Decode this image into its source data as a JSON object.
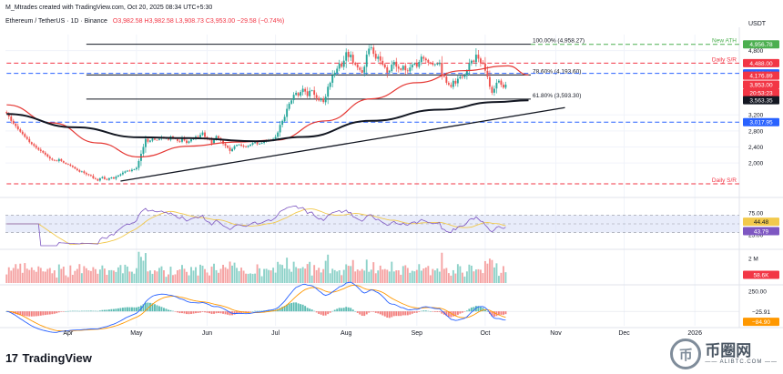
{
  "header": {
    "credit": "M_Mtrades created with TradingView.com, Oct 20, 2025 08:34 UTC+5:30",
    "symbol": "Ethereum / TetherUS · 1D · Binance",
    "ohlc": "O3,982.58 H3,982.58 L3,908.73 C3,953.00 −29.58 (−0.74%)"
  },
  "footer": {
    "logo_text": "TradingView",
    "logo_mark": "17"
  },
  "watermark": {
    "symbol": "币",
    "name": "币圈网",
    "domain": "—— ALIBTC.COM ——"
  },
  "colors": {
    "up": "#26a69a",
    "down": "#ef5350",
    "ma50": "#e53935",
    "ma200": "#131722",
    "rsi": "#7e57c2",
    "rsi_ma": "#f2c94c",
    "macd": "#2962ff",
    "signal": "#ff9800"
  },
  "chart_data": {
    "type": "candlestick",
    "symbol": "Ethereum / TetherUS",
    "interval": "1D",
    "exchange": "Binance",
    "currency": "USDT",
    "price_axis": {
      "range": [
        1300,
        5200
      ],
      "ticks": [
        2000,
        2400,
        2800,
        3200,
        4800
      ],
      "tick_labels": [
        "2,000",
        "2,400",
        "2,800",
        "3,200",
        "4,800"
      ]
    },
    "time_axis": {
      "labels": [
        "Apr",
        "May",
        "Jun",
        "Jul",
        "Aug",
        "Sep",
        "Oct",
        "Nov",
        "Dec",
        "2026"
      ],
      "label_bars": [
        27,
        57,
        88,
        118,
        149,
        180,
        210,
        241,
        271,
        302
      ],
      "bars_visible": 322
    },
    "closes_start_bar": 0,
    "closes": [
      3240,
      3160,
      3050,
      2980,
      2920,
      2840,
      2780,
      2720,
      2650,
      2600,
      2520,
      2470,
      2430,
      2380,
      2330,
      2300,
      2260,
      2210,
      2160,
      2110,
      2080,
      2060,
      2050,
      2100,
      2050,
      2010,
      1980,
      1960,
      1930,
      1900,
      1860,
      1820,
      1780,
      1790,
      1750,
      1720,
      1700,
      1680,
      1620,
      1600,
      1560,
      1620,
      1650,
      1600,
      1580,
      1620,
      1640,
      1610,
      1660,
      1690,
      1720,
      1760,
      1790,
      1810,
      1800,
      1830,
      1840,
      1880,
      2050,
      2230,
      2400,
      2600,
      2530,
      2560,
      2610,
      2580,
      2570,
      2600,
      2640,
      2610,
      2620,
      2580,
      2660,
      2620,
      2600,
      2550,
      2530,
      2620,
      2560,
      2500,
      2540,
      2590,
      2620,
      2660,
      2640,
      2700,
      2760,
      2650,
      2600,
      2580,
      2490,
      2580,
      2670,
      2620,
      2560,
      2480,
      2430,
      2380,
      2300,
      2350,
      2420,
      2450,
      2460,
      2430,
      2410,
      2400,
      2430,
      2460,
      2500,
      2520,
      2470,
      2480,
      2500,
      2530,
      2560,
      2580,
      2560,
      2600,
      2650,
      2760,
      2950,
      3050,
      3150,
      3350,
      3480,
      3560,
      3700,
      3750,
      3680,
      3770,
      3850,
      3780,
      3670,
      3800,
      3810,
      3700,
      3620,
      3560,
      3600,
      3520,
      3650,
      3900,
      4000,
      4180,
      4250,
      4350,
      4480,
      4400,
      4550,
      4760,
      4640,
      4700,
      4500,
      4450,
      4380,
      4320,
      4250,
      4400,
      4700,
      4850,
      4880,
      4720,
      4600,
      4650,
      4550,
      4450,
      4380,
      4250,
      4300,
      4450,
      4520,
      4400,
      4350,
      4320,
      4420,
      4310,
      4290,
      4380,
      4450,
      4480,
      4400,
      4520,
      4650,
      4600,
      4560,
      4500,
      4480,
      4450,
      4460,
      4470,
      4500,
      4180,
      4150,
      4000,
      3950,
      3900,
      4050,
      3980,
      4100,
      4150,
      4140,
      4180,
      4300,
      4480,
      4550,
      4520,
      4700,
      4600,
      4500,
      4480,
      4300,
      4150,
      3900,
      3750,
      3850,
      4000,
      4050,
      3950,
      3880,
      3953
    ],
    "moving_averages": [
      {
        "period": 50,
        "points": [
          [
            0,
            3450
          ],
          [
            20,
            3000
          ],
          [
            40,
            2500
          ],
          [
            58,
            2150
          ],
          [
            80,
            2420
          ],
          [
            100,
            2520
          ],
          [
            118,
            2570
          ],
          [
            140,
            3050
          ],
          [
            160,
            3600
          ],
          [
            180,
            4000
          ],
          [
            200,
            4300
          ],
          [
            220,
            4420
          ],
          [
            229,
            4195
          ]
        ]
      },
      {
        "period": 200,
        "points": [
          [
            0,
            3220
          ],
          [
            30,
            2890
          ],
          [
            58,
            2640
          ],
          [
            80,
            2620
          ],
          [
            110,
            2540
          ],
          [
            130,
            2650
          ],
          [
            160,
            3050
          ],
          [
            190,
            3330
          ],
          [
            215,
            3520
          ],
          [
            229,
            3563
          ]
        ]
      }
    ],
    "trendline": [
      [
        50,
        1550
      ],
      [
        245,
        3380
      ]
    ],
    "levels": [
      {
        "label": "100.00% (4,958.27)",
        "value": 4958.27,
        "style": "solid",
        "color": "#131722",
        "from_bar": 35,
        "to_bar": 230
      },
      {
        "label": "New ATH",
        "value": 4956.78,
        "style": "dashed",
        "color": "#4caf50",
        "from_bar": 230,
        "to_bar": 322
      },
      {
        "label": "Daily S/R",
        "value": 4488.0,
        "style": "dashed",
        "color": "#f23645",
        "from_bar": 0,
        "to_bar": 322
      },
      {
        "label": "78.60% (4,193.60)",
        "value": 4193.6,
        "style": "solid",
        "color": "#131722",
        "from_bar": 35,
        "to_bar": 230
      },
      {
        "label": "",
        "value": 4232.11,
        "style": "dashed",
        "color": "#2962ff",
        "from_bar": 0,
        "to_bar": 322
      },
      {
        "label": "61.80% (3,593.30)",
        "value": 3593.3,
        "style": "solid",
        "color": "#131722",
        "from_bar": 35,
        "to_bar": 230
      },
      {
        "label": "",
        "value": 3017.95,
        "style": "dashed",
        "color": "#2962ff",
        "from_bar": 0,
        "to_bar": 322
      },
      {
        "label": "Daily S/R",
        "value": 1480.0,
        "style": "dashed",
        "color": "#f23645",
        "from_bar": 0,
        "to_bar": 322
      }
    ],
    "price_tags": [
      {
        "value": 4956.78,
        "text": "4,956.78",
        "bg": "#4caf50",
        "fg": "#ffffff"
      },
      {
        "value": 4488.0,
        "text": "4,488.00",
        "bg": "#f23645",
        "fg": "#ffffff"
      },
      {
        "value": 4232.11,
        "text": "4,232.11",
        "bg": "#2962ff",
        "fg": "#ffffff"
      },
      {
        "value": 4176.89,
        "text": "4,176.89",
        "bg": "#f23645",
        "fg": "#ffffff"
      },
      {
        "value": 3953.0,
        "text": "3,953.00",
        "bg": "#f23645",
        "fg": "#ffffff",
        "sub": "20:53:23"
      },
      {
        "value": 3563.35,
        "text": "3,563.35",
        "bg": "#131722",
        "fg": "#ffffff"
      },
      {
        "value": 3017.95,
        "text": "3,017.95",
        "bg": "#2962ff",
        "fg": "#ffffff"
      }
    ],
    "indicators": {
      "rsi": {
        "range": [
          0,
          100
        ],
        "band": [
          30,
          70
        ],
        "axis_labels": [
          {
            "value": 75,
            "text": "75.00"
          },
          {
            "value": 25,
            "text": "25.00"
          }
        ],
        "tags": [
          {
            "value": 44.48,
            "text": "44.48",
            "bg": "#f2c94c",
            "fg": "#131722"
          },
          {
            "value": 43.79,
            "text": "43.79",
            "bg": "#7e57c2",
            "fg": "#ffffff"
          }
        ]
      },
      "volume": {
        "axis_labels": [
          {
            "value": 2000000,
            "text": "2 M"
          }
        ],
        "range": [
          0,
          2600000
        ],
        "tag": {
          "text": "58.6K",
          "bg": "#f23645",
          "fg": "#ffffff"
        }
      },
      "macd": {
        "axis_labels": [
          {
            "value": 250,
            "text": "250.00"
          }
        ],
        "range": [
          -180,
          320
        ],
        "tags": [
          {
            "value": -25.91,
            "text": "−25.91",
            "bg": "#ffffff",
            "fg": "#131722"
          },
          {
            "value": -84.9,
            "text": "−84.90",
            "bg": "#ff9800",
            "fg": "#ffffff"
          }
        ]
      }
    }
  }
}
